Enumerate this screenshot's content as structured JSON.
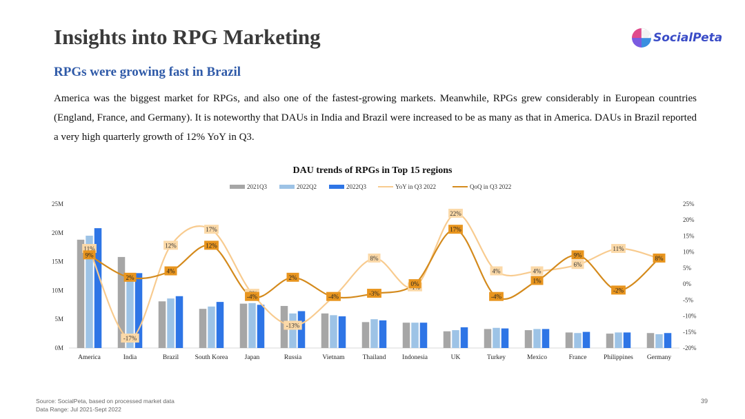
{
  "slide": {
    "title": "Insights into RPG Marketing",
    "subtitle": "RPGs were growing fast in Brazil",
    "paragraph": "America was the biggest market for RPGs, and also one of the fastest-growing markets. Meanwhile, RPGs grew considerably in European countries (England, France, and Germany). It is noteworthy that DAUs in India and Brazil were increased to be as many as that in America. DAUs in Brazil reported a very high quarterly growth of 12% YoY in Q3.",
    "logo_text": "SocialPeta",
    "source_line1": "Source: SocialPeta, based on processed market data",
    "source_line2": "Data Range: Jul 2021-Sept 2022",
    "page_number": "39"
  },
  "colors": {
    "q2021": "#a6a6a6",
    "q2022q2": "#9dc3e6",
    "q2022q3": "#2e75e6",
    "yoy": "#f8cb8f",
    "qoq": "#d48a1c",
    "yoy_label_bg": "#fbd9a8",
    "qoq_label_bg": "#e8951f",
    "subtitle": "#2f5aa8",
    "logo": "#3a4cc7"
  },
  "chart_data": {
    "type": "bar",
    "title": "DAU trends of RPGs in Top 15 regions",
    "categories": [
      "America",
      "India",
      "Brazil",
      "South Korea",
      "Japan",
      "Russia",
      "Vietnam",
      "Thailand",
      "Indonesia",
      "UK",
      "Turkey",
      "Mexico",
      "France",
      "Philippines",
      "Germany"
    ],
    "series": [
      {
        "name": "2021Q3",
        "kind": "bar",
        "axis": "left",
        "values": [
          18.8,
          15.8,
          8.1,
          6.8,
          7.7,
          7.3,
          6.0,
          4.5,
          4.4,
          2.9,
          3.3,
          3.1,
          2.7,
          2.5,
          2.6
        ]
      },
      {
        "name": "2022Q2",
        "kind": "bar",
        "axis": "left",
        "values": [
          19.5,
          12.8,
          8.6,
          7.2,
          7.8,
          6.0,
          5.7,
          5.0,
          4.4,
          3.1,
          3.5,
          3.3,
          2.6,
          2.7,
          2.4
        ]
      },
      {
        "name": "2022Q3",
        "kind": "bar",
        "axis": "left",
        "values": [
          20.8,
          13.0,
          9.0,
          8.0,
          7.5,
          6.4,
          5.5,
          4.8,
          4.4,
          3.6,
          3.4,
          3.3,
          2.8,
          2.7,
          2.6
        ]
      },
      {
        "name": "YoY in Q3 2022",
        "kind": "line",
        "axis": "right",
        "values": [
          11,
          -17,
          12,
          17,
          -3,
          -13,
          -4,
          8,
          -1,
          22,
          4,
          4,
          6,
          11,
          8
        ],
        "labels": [
          "11%",
          "-17%",
          "12%",
          "17%",
          "-3%",
          "-13%",
          "-4%",
          "8%",
          "-1%",
          "22%",
          "4%",
          "4%",
          "6%",
          "11%",
          "8%"
        ]
      },
      {
        "name": "QoQ in Q3 2022",
        "kind": "line",
        "axis": "right",
        "values": [
          9,
          2,
          4,
          12,
          -4,
          2,
          -4,
          -3,
          0,
          17,
          -4,
          1,
          9,
          -2,
          8
        ],
        "labels": [
          "9%",
          "2%",
          "4%",
          "12%",
          "-4%",
          "2%",
          "-4%",
          "-3%",
          "0%",
          "17%",
          "-4%",
          "1%",
          "9%",
          "-2%",
          "8%"
        ]
      }
    ],
    "y_left": {
      "min": 0,
      "max": 25,
      "ticks": [
        "0M",
        "5M",
        "10M",
        "15M",
        "20M",
        "25M"
      ]
    },
    "y_right": {
      "min": -20,
      "max": 25,
      "ticks": [
        "-20%",
        "-15%",
        "-10%",
        "-5%",
        "0%",
        "5%",
        "10%",
        "15%",
        "20%",
        "25%"
      ]
    },
    "legend": "top-center",
    "grid": false
  }
}
